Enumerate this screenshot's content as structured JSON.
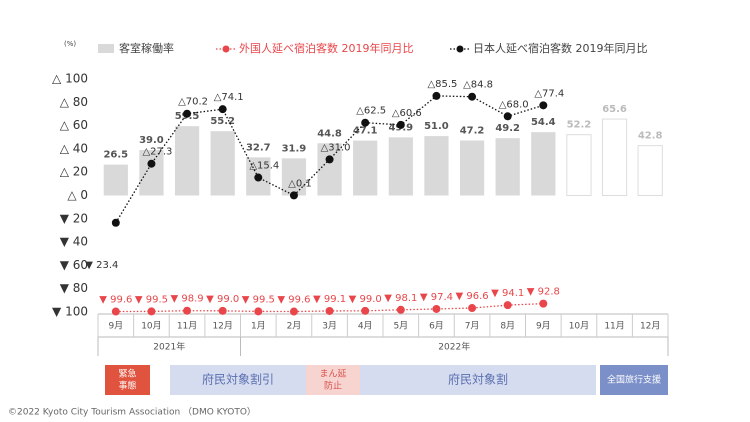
{
  "chart_data": {
    "type": "bar_line",
    "unit": "(%)",
    "categories": [
      "9月",
      "10月",
      "11月",
      "12月",
      "1月",
      "2月",
      "3月",
      "4月",
      "5月",
      "6月",
      "7月",
      "8月",
      "9月",
      "10月",
      "11月",
      "12月"
    ],
    "years": [
      "2021年",
      "2022年"
    ],
    "ylim": [
      -100,
      100
    ],
    "yticks": [
      {
        "value": 100,
        "label": "△ 100"
      },
      {
        "value": 80,
        "label": "△ 80"
      },
      {
        "value": 60,
        "label": "△ 60"
      },
      {
        "value": 40,
        "label": "△ 40"
      },
      {
        "value": 20,
        "label": "△ 20"
      },
      {
        "value": 0,
        "label": "△ 0"
      },
      {
        "value": -20,
        "label": "▼ 20"
      },
      {
        "value": -40,
        "label": "▼ 40"
      },
      {
        "value": -60,
        "label": "▼ 60"
      },
      {
        "value": -80,
        "label": "▼ 80"
      },
      {
        "value": -100,
        "label": "▼ 100"
      }
    ],
    "series": [
      {
        "name": "客室稼働率",
        "kind": "bar",
        "color": "#d9d9d9",
        "values": [
          26.5,
          39.0,
          59.5,
          55.2,
          32.7,
          31.9,
          44.8,
          47.1,
          49.9,
          51.0,
          47.2,
          49.2,
          54.4,
          52.2,
          65.6,
          42.8
        ],
        "value_labels": [
          "26.5",
          "39.0",
          "59.5",
          "55.2",
          "32.7",
          "31.9",
          "44.8",
          "47.1",
          "49.9",
          "51.0",
          "47.2",
          "49.2",
          "54.4",
          "52.2",
          "65.6",
          "42.8"
        ],
        "hollow": [
          false,
          false,
          false,
          false,
          false,
          false,
          false,
          false,
          false,
          false,
          false,
          false,
          false,
          true,
          true,
          true
        ]
      },
      {
        "name": "外国人延べ宿泊客数 2019年同月比",
        "kind": "line",
        "color": "#e8464a",
        "values": [
          -99.6,
          -99.5,
          -98.9,
          -99.0,
          -99.5,
          -99.6,
          -99.1,
          -99.0,
          -98.1,
          -97.4,
          -96.6,
          -94.1,
          -92.8,
          null,
          null,
          null
        ],
        "value_labels": [
          "▼ 99.6",
          "▼ 99.5",
          "▼ 98.9",
          "▼ 99.0",
          "▼ 99.5",
          "▼ 99.6",
          "▼ 99.1",
          "▼ 99.0",
          "▼ 98.1",
          "▼ 97.4",
          "▼ 96.6",
          "▼ 94.1",
          "▼ 92.8",
          null,
          null,
          null
        ]
      },
      {
        "name": "日本人延べ宿泊客数 2019年同月比",
        "kind": "line",
        "color": "#111111",
        "values": [
          -23.4,
          27.3,
          70.2,
          74.1,
          15.4,
          0.1,
          31.0,
          62.5,
          60.6,
          85.5,
          84.8,
          68.0,
          77.4,
          null,
          null,
          null
        ],
        "value_labels": [
          "▼ 23.4",
          "△27.3",
          "△70.2",
          "△74.1",
          "△15.4",
          "△0.1",
          "△31.0",
          "△62.5",
          "△60.6",
          "△85.5",
          "△84.8",
          "△68.0",
          "△77.4",
          null,
          null,
          null
        ]
      }
    ],
    "annotations": [
      [
        "緊急",
        "事態"
      ],
      [
        "府民対象割引"
      ],
      [
        "まん延",
        "防止"
      ],
      [
        "府民対象割"
      ],
      [
        "全国旅行支援"
      ]
    ],
    "footer": "©2022 Kyoto City Tourism Association （DMO KYOTO）"
  }
}
